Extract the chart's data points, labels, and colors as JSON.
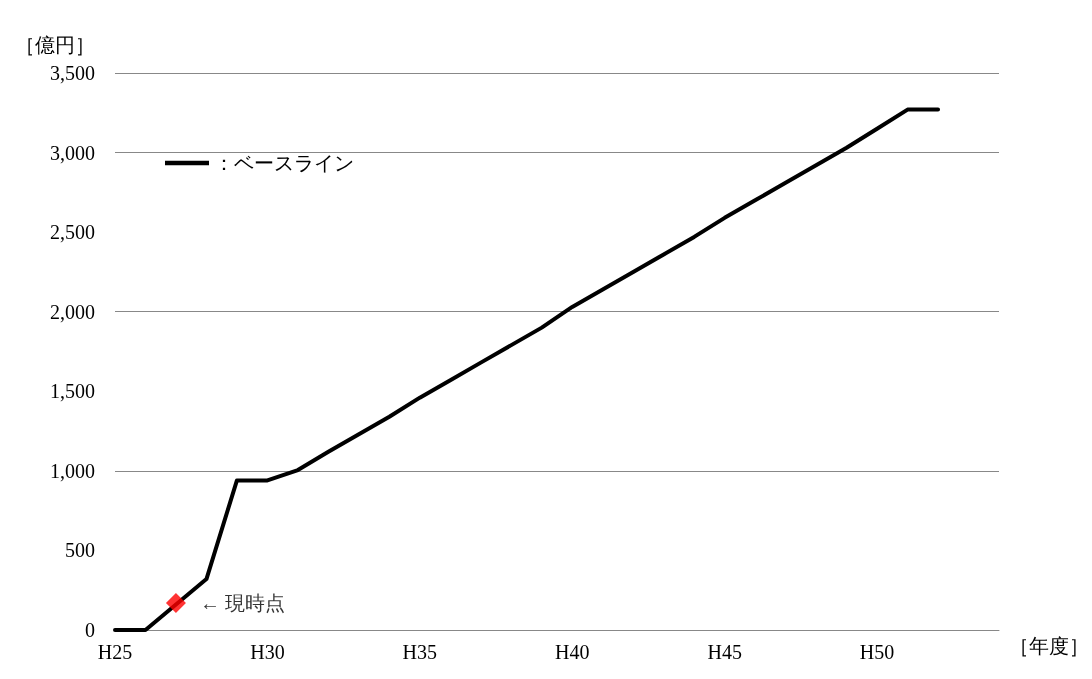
{
  "chart_data": {
    "type": "line",
    "ylabel": "［億円］",
    "xlabel": "［年度］",
    "categories": [
      "H25",
      null,
      null,
      null,
      null,
      "H30",
      null,
      null,
      null,
      null,
      "H35",
      null,
      null,
      null,
      null,
      "H40",
      null,
      null,
      null,
      null,
      "H45",
      null,
      null,
      null,
      null,
      "H50",
      null,
      null,
      null,
      null
    ],
    "series": [
      {
        "name": "：ベースライン",
        "color": "#000000",
        "values": [
          0,
          0,
          160,
          320,
          940,
          940,
          1005,
          1120,
          1230,
          1340,
          1460,
          1570,
          1680,
          1790,
          1900,
          2030,
          2140,
          2250,
          2360,
          2470,
          2590,
          2700,
          2810,
          2920,
          3030,
          3150,
          3270,
          3270,
          null,
          null
        ]
      },
      {
        "type": "scatter",
        "color": "#ff0000",
        "marker": "diamond",
        "values": [
          null,
          null,
          170,
          null,
          null,
          null,
          null,
          null,
          null,
          null,
          null,
          null,
          null,
          null,
          null,
          null,
          null,
          null,
          null,
          null,
          null,
          null,
          null,
          null,
          null,
          null,
          null,
          null,
          null,
          null
        ]
      }
    ],
    "annotations": [
      "← 現時点"
    ],
    "ylim": [
      0,
      3500
    ],
    "yticks": [
      0,
      {
        "value": 500,
        "label": "500"
      },
      {
        "value": 1000,
        "label": "1,000"
      },
      {
        "value": 1500,
        "label": "1,500"
      },
      {
        "value": 2000,
        "label": "2,000"
      },
      {
        "value": 2500,
        "label": "2,500"
      },
      {
        "value": 3000,
        "label": "3,000"
      },
      {
        "value": 3500,
        "label": "3,500"
      }
    ],
    "grid": "y",
    "legend": "top left",
    "marker": "none",
    "line_style": "solid"
  }
}
